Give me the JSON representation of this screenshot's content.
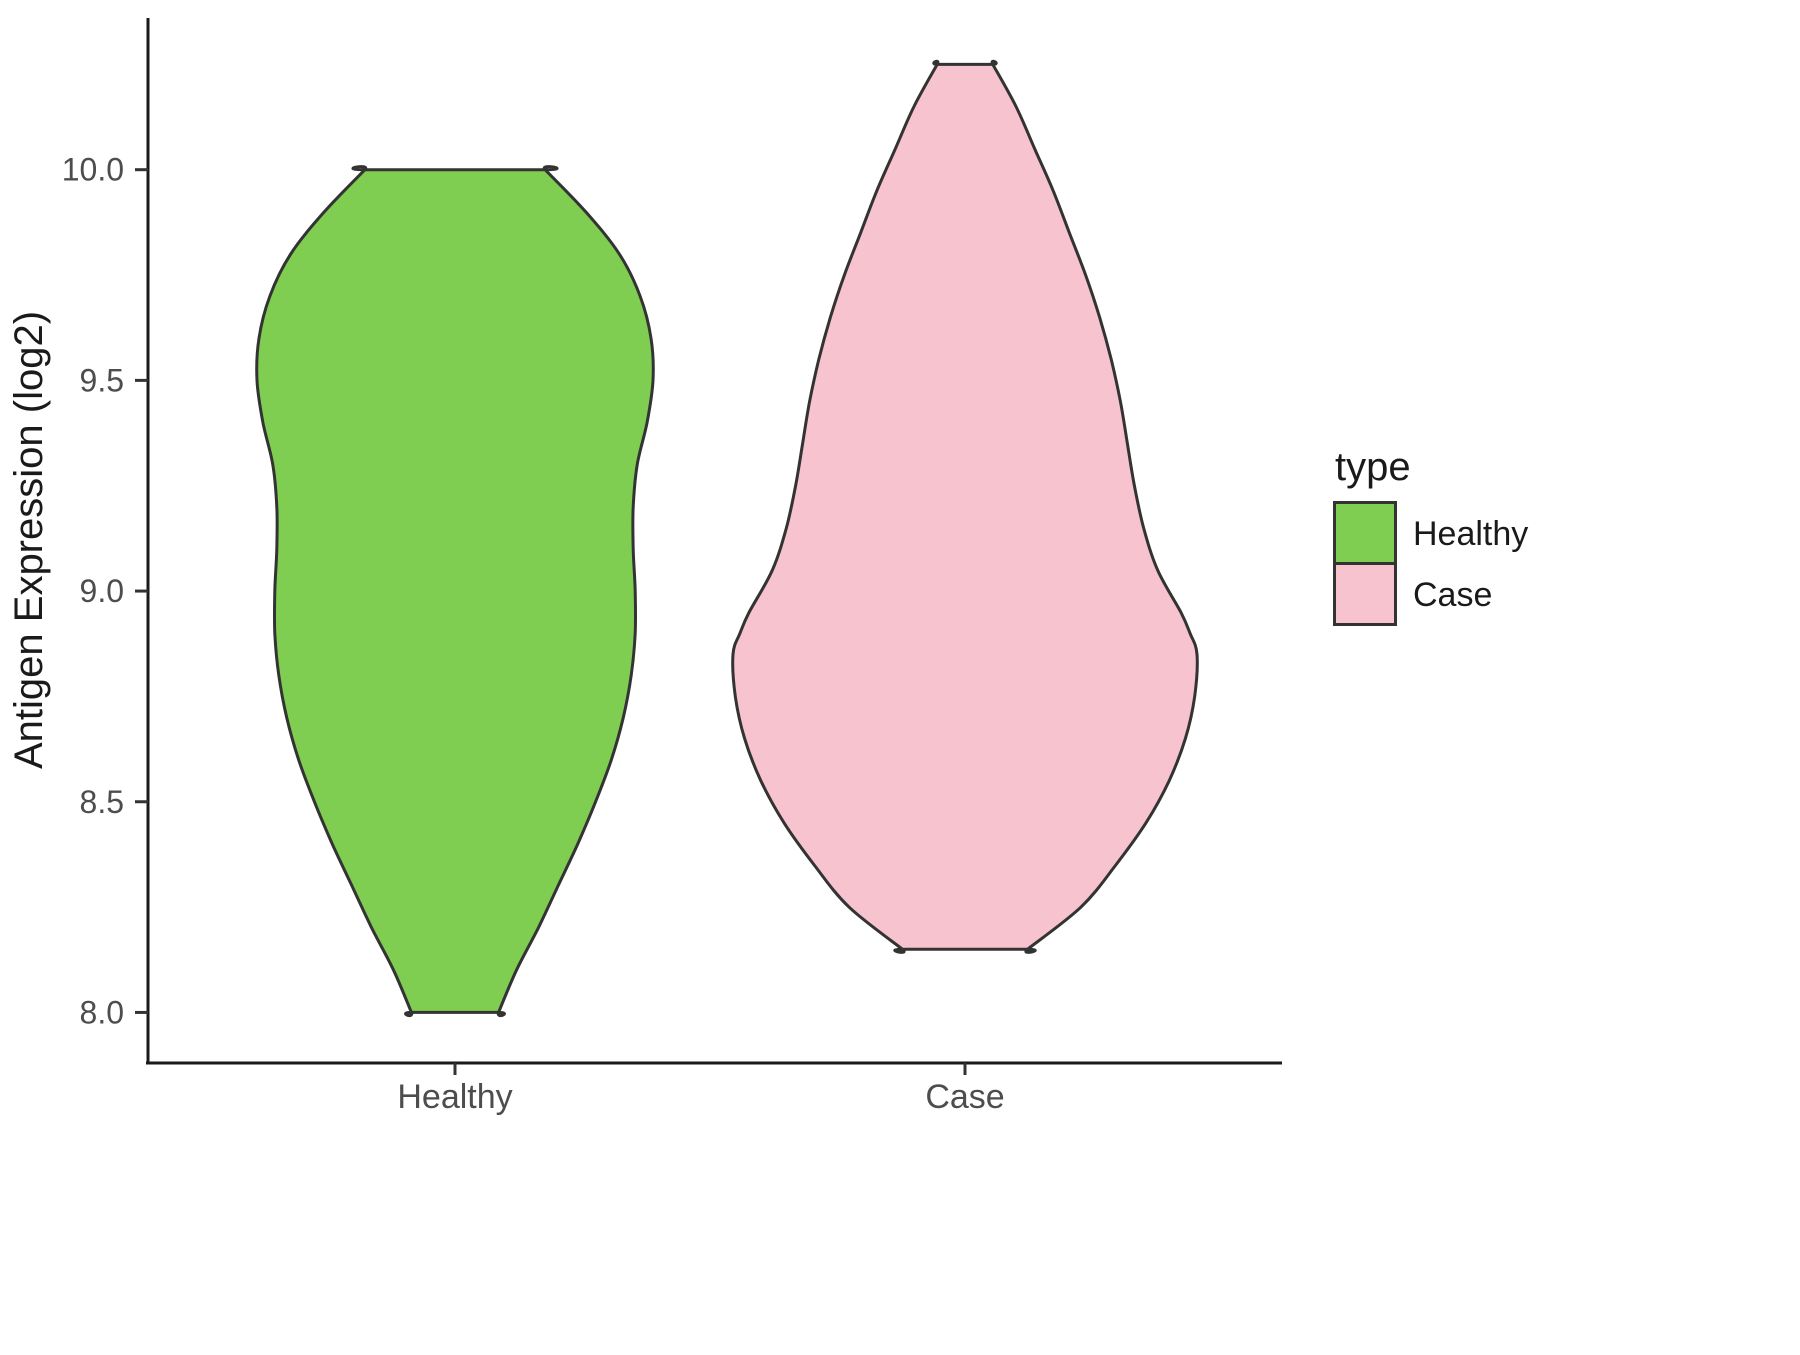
{
  "chart_data": {
    "type": "violin",
    "title": "",
    "xlabel": "",
    "ylabel": "Antigen Expression (log2)",
    "categories": [
      "Healthy",
      "Case"
    ],
    "yticks": [
      8.0,
      8.5,
      9.0,
      9.5,
      10.0
    ],
    "ylim": [
      7.88,
      10.36
    ],
    "grid": false,
    "legend": {
      "title": "type",
      "position": "right",
      "items": [
        {
          "label": "Healthy",
          "color": "#7FCE52"
        },
        {
          "label": "Case",
          "color": "#F6C3CF"
        }
      ]
    },
    "outline_color": "#333333",
    "series": [
      {
        "name": "Healthy",
        "color": "#7FCE52",
        "value_range": [
          7.99,
          10.0
        ],
        "profile": [
          [
            10.0,
            0.455
          ],
          [
            9.9,
            0.66
          ],
          [
            9.8,
            0.83
          ],
          [
            9.7,
            0.935
          ],
          [
            9.6,
            0.99
          ],
          [
            9.5,
            1.0
          ],
          [
            9.4,
            0.97
          ],
          [
            9.3,
            0.92
          ],
          [
            9.2,
            0.9
          ],
          [
            9.1,
            0.9
          ],
          [
            9.0,
            0.91
          ],
          [
            8.9,
            0.91
          ],
          [
            8.8,
            0.89
          ],
          [
            8.7,
            0.85
          ],
          [
            8.6,
            0.79
          ],
          [
            8.5,
            0.71
          ],
          [
            8.4,
            0.62
          ],
          [
            8.3,
            0.52
          ],
          [
            8.2,
            0.42
          ],
          [
            8.1,
            0.31
          ],
          [
            8.0,
            0.22
          ]
        ]
      },
      {
        "name": "Case",
        "color": "#F6C3CF",
        "value_range": [
          8.15,
          10.25
        ],
        "profile": [
          [
            10.25,
            0.12
          ],
          [
            10.15,
            0.22
          ],
          [
            10.05,
            0.3
          ],
          [
            9.95,
            0.38
          ],
          [
            9.85,
            0.45
          ],
          [
            9.75,
            0.52
          ],
          [
            9.65,
            0.58
          ],
          [
            9.55,
            0.63
          ],
          [
            9.45,
            0.67
          ],
          [
            9.35,
            0.7
          ],
          [
            9.25,
            0.73
          ],
          [
            9.15,
            0.77
          ],
          [
            9.05,
            0.83
          ],
          [
            8.95,
            0.93
          ],
          [
            8.9,
            0.97
          ],
          [
            8.85,
            1.0
          ],
          [
            8.75,
            0.99
          ],
          [
            8.65,
            0.95
          ],
          [
            8.55,
            0.88
          ],
          [
            8.45,
            0.78
          ],
          [
            8.35,
            0.65
          ],
          [
            8.25,
            0.5
          ],
          [
            8.15,
            0.27
          ]
        ]
      }
    ]
  }
}
